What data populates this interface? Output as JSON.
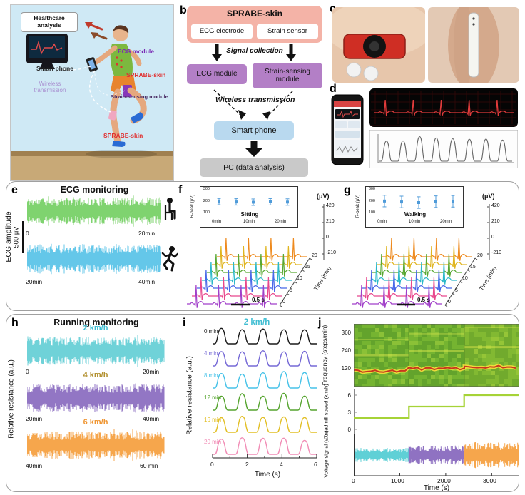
{
  "panels": {
    "a": {
      "letter": "a",
      "healthcare_label": "Healthcare analysis",
      "smartphone_label": "Smart phone",
      "ecg_module_label": "ECG module",
      "sprabe_skin_upper_label": "SPRABE-skin",
      "wireless_label": "Wireless transmission",
      "strain_module_label": "Strain-sensing module",
      "sprabe_skin_lower_label": "SPRABE-skin"
    },
    "b": {
      "letter": "b",
      "title": "SPRABE-skin",
      "ecg_electrode": "ECG electrode",
      "strain_sensor": "Strain sensor",
      "signal_collection": "Signal collection",
      "ecg_module": "ECG module",
      "strain_module": "Strain-sensing module",
      "wireless": "Wireless transmission",
      "smartphone": "Smart phone",
      "pc": "PC (data analysis)"
    },
    "c": {
      "letter": "c"
    },
    "d": {
      "letter": "d"
    },
    "e": {
      "letter": "e"
    },
    "f": {
      "letter": "f"
    },
    "g": {
      "letter": "g"
    },
    "h": {
      "letter": "h"
    },
    "i": {
      "letter": "i"
    },
    "j": {
      "letter": "j"
    }
  },
  "chart_data": [
    {
      "id": "ecg-monitoring",
      "type": "line",
      "title": "ECG monitoring",
      "ylabel": "ECG amplitude",
      "y_scalebar": "500 μV",
      "traces": [
        {
          "activity": "sitting",
          "color": "#7fd36f",
          "x_start": "0",
          "x_end": "20min",
          "signal": "continuous ECG band, constant amplitude"
        },
        {
          "activity": "running",
          "color": "#64c7e9",
          "x_start": "20min",
          "x_end": "40min",
          "signal": "continuous ECG band, constant amplitude"
        }
      ]
    },
    {
      "id": "ecg-waterfall-sitting",
      "type": "3d-waterfall",
      "condition": "Sitting",
      "inset": {
        "ylabel": "R-peak (μV)",
        "ylim": [
          100,
          300
        ],
        "yticks": [
          300,
          200,
          100
        ],
        "xticks": [
          "0min",
          "10min",
          "20min"
        ],
        "r_peak_values": [
          207,
          205,
          203,
          206,
          204
        ],
        "error_bar": 25,
        "marker_color": "#4f9bd9"
      },
      "right_axis": {
        "label": "(μV)",
        "ticks": [
          420,
          210,
          0,
          -210
        ]
      },
      "depth_axis": {
        "label": "Time (min)",
        "ticks": [
          0,
          5,
          10,
          15,
          20
        ]
      },
      "scalebar": "0.5 s",
      "beats_per_trace": 4,
      "trace_colors_front_to_back": [
        "#a13fc9",
        "#e8468c",
        "#4868e8",
        "#2ab8c9",
        "#58a832",
        "#e0b520",
        "#ee8a1e"
      ]
    },
    {
      "id": "ecg-waterfall-walking",
      "type": "3d-waterfall",
      "condition": "Walking",
      "inset": {
        "ylabel": "R-peak (μV)",
        "ylim": [
          100,
          300
        ],
        "yticks": [
          300,
          200,
          100
        ],
        "xticks": [
          "0min",
          "10min",
          "20min"
        ],
        "r_peak_values": [
          212,
          205,
          200,
          207,
          210
        ],
        "error_bar": 45,
        "marker_color": "#4f9bd9"
      },
      "right_axis": {
        "label": "(μV)",
        "ticks": [
          420,
          210,
          0,
          -210
        ]
      },
      "depth_axis": {
        "label": "Time (min)",
        "ticks": [
          0,
          5,
          10,
          15,
          20
        ]
      },
      "scalebar": "0.5 s",
      "beats_per_trace": 4,
      "trace_colors_front_to_back": [
        "#a13fc9",
        "#e8468c",
        "#4868e8",
        "#2ab8c9",
        "#58a832",
        "#e0b520",
        "#ee8a1e"
      ]
    },
    {
      "id": "running-monitoring",
      "type": "line",
      "title": "Running monitoring",
      "ylabel": "Relative resistance (a.u.)",
      "traces": [
        {
          "speed": "2 km/h",
          "color": "#6fd2d8",
          "label_color": "#3fbdd2",
          "x_start": "0",
          "x_end": "20min"
        },
        {
          "speed": "4 km/h",
          "color": "#9276c4",
          "label_color": "#b2902f",
          "x_start": "20min",
          "x_end": "40min"
        },
        {
          "speed": "6 km/h",
          "color": "#f6a64c",
          "label_color": "#ef9531",
          "x_start": "40min",
          "x_end": "60 min"
        }
      ]
    },
    {
      "id": "gait-waveforms-2kmh",
      "type": "line",
      "title": "2 km/h",
      "title_color": "#3fbdd2",
      "ylabel": "Relative resistance (a.u.)",
      "xlabel": "Time (s)",
      "xlim": [
        0,
        6.5
      ],
      "xticks": [
        0,
        2,
        4,
        6
      ],
      "period_s": 1.2,
      "traces": [
        {
          "label": "0 min",
          "color": "#1a1a1a",
          "peaks": 5
        },
        {
          "label": "4 min",
          "color": "#7569d6",
          "peaks": 5
        },
        {
          "label": "8 min",
          "color": "#46c2e8",
          "peaks": 5
        },
        {
          "label": "12 min",
          "color": "#55a42e",
          "peaks": 5
        },
        {
          "label": "16 min",
          "color": "#e2bf25",
          "peaks": 5
        },
        {
          "label": "20 min",
          "color": "#f18cb5",
          "peaks": 5
        }
      ]
    },
    {
      "id": "treadmill-summary",
      "type": "multi",
      "xlabel": "Time (s)",
      "xlim": [
        0,
        3600
      ],
      "xticks": [
        0,
        1000,
        2000,
        3000
      ],
      "subplots": [
        {
          "type": "heatmap",
          "ylabel": "Frequency (steps/min)",
          "yticks": [
            360,
            240,
            120
          ],
          "ylim": [
            0,
            420
          ],
          "description": "step-frequency spectrogram; dominant band and harmonics rise at each speed change"
        },
        {
          "type": "step",
          "ylabel": "Treadmill speed (km/h)",
          "yticks": [
            6,
            3,
            0
          ],
          "x": [
            0,
            1200,
            2400,
            3600
          ],
          "speeds": [
            2,
            4,
            6
          ],
          "color": "#a6d337"
        },
        {
          "type": "band",
          "ylabel": "Voltage signal (a.u.)",
          "segments": [
            {
              "x0": 0,
              "x1": 1200,
              "color": "#5fd0d6"
            },
            {
              "x0": 1200,
              "x1": 2400,
              "color": "#8f72c2"
            },
            {
              "x0": 2400,
              "x1": 3600,
              "color": "#f6a64c"
            }
          ]
        }
      ]
    }
  ]
}
